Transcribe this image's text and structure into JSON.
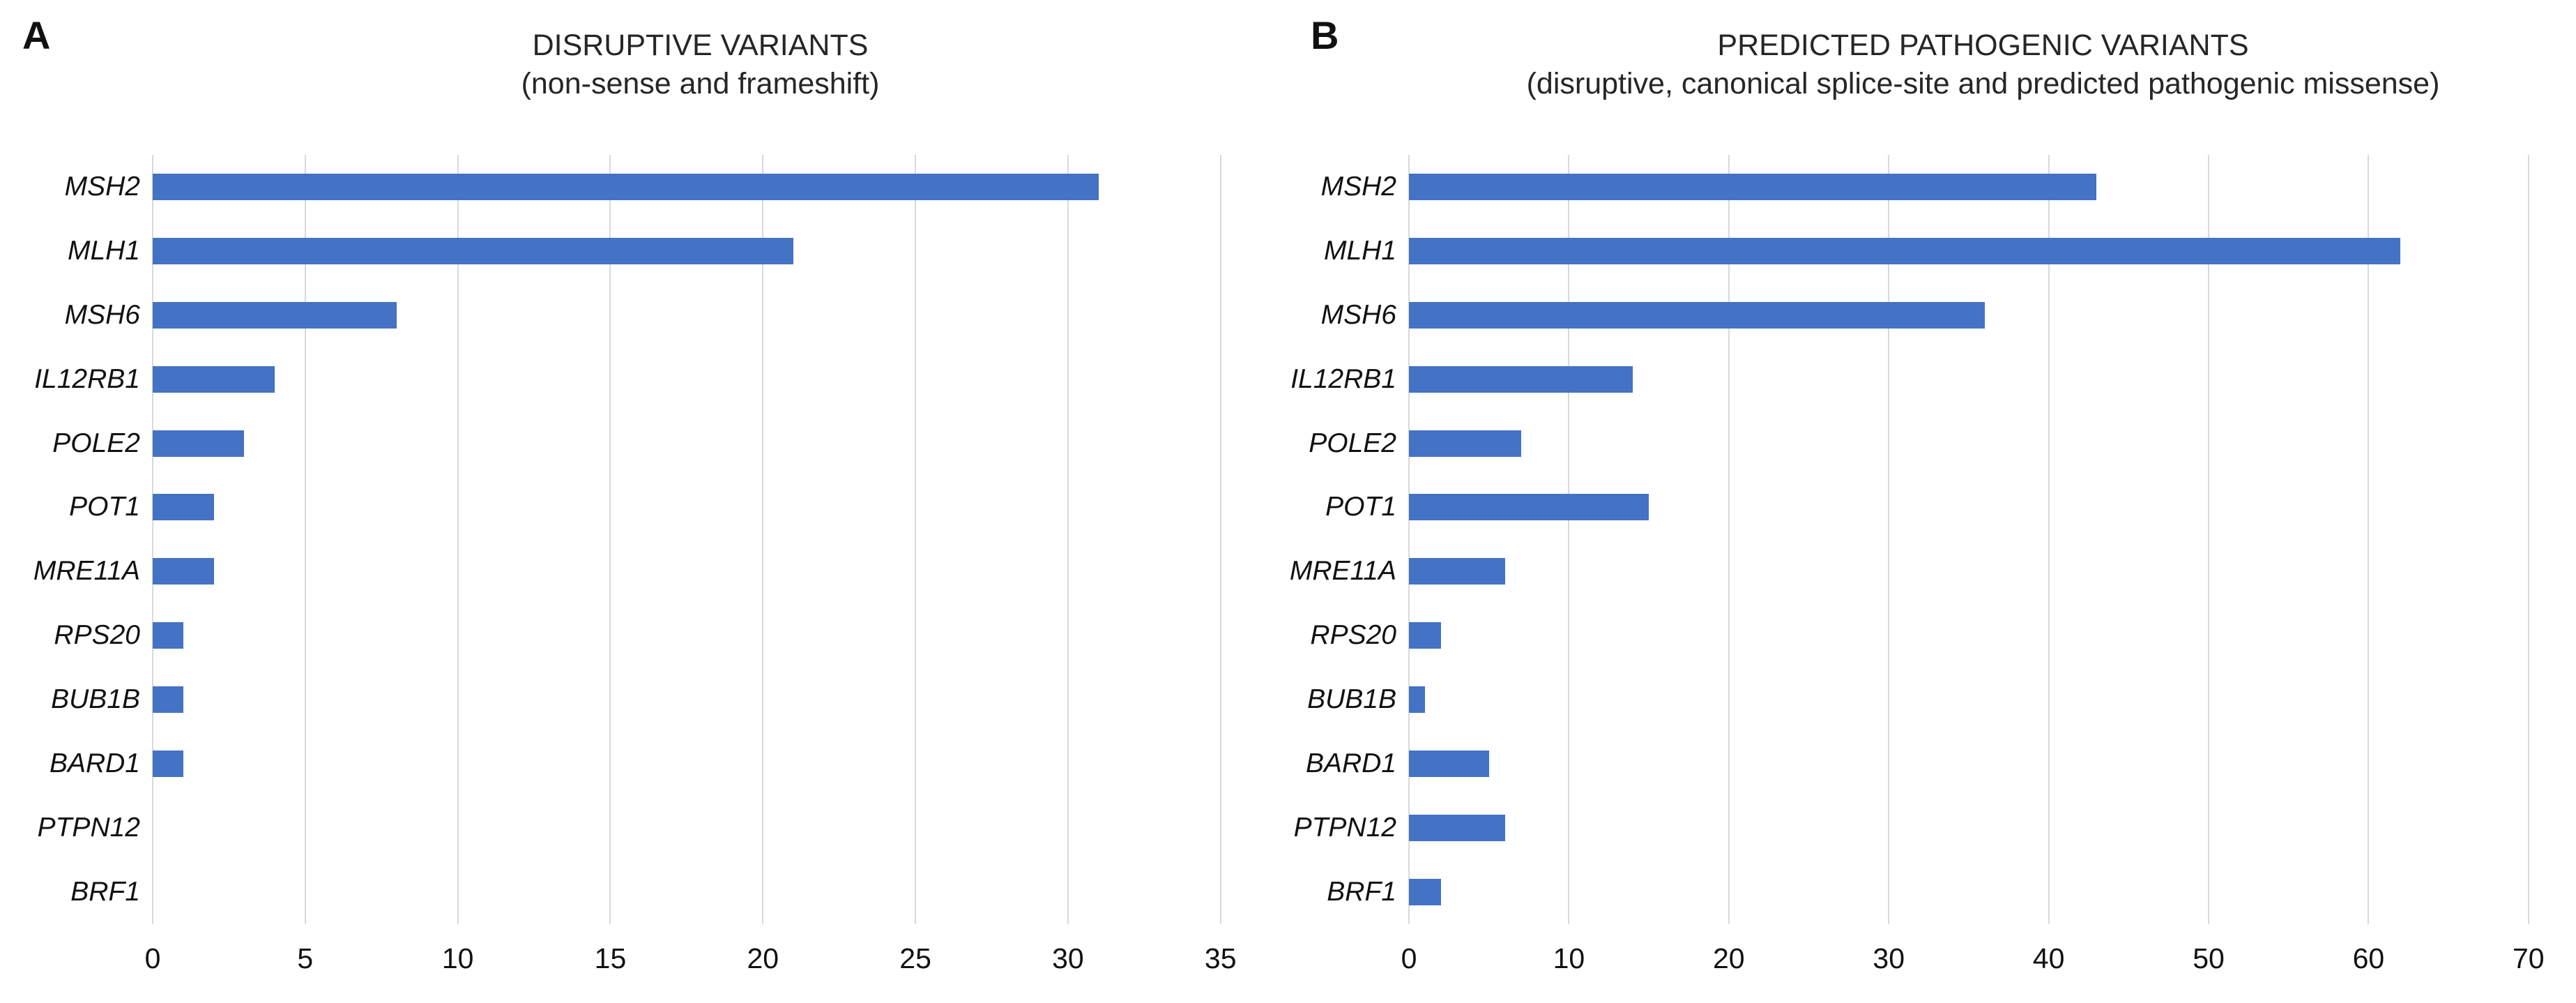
{
  "panels": [
    {
      "letter": "A"
    },
    {
      "letter": "B"
    }
  ],
  "chart_data": [
    {
      "type": "bar",
      "orientation": "horizontal",
      "title": "DISRUPTIVE VARIANTS",
      "subtitle": "(non-sense and frameshift)",
      "categories": [
        "MSH2",
        "MLH1",
        "MSH6",
        "IL12RB1",
        "POLE2",
        "POT1",
        "MRE11A",
        "RPS20",
        "BUB1B",
        "BARD1",
        "PTPN12",
        "BRF1"
      ],
      "values": [
        31,
        21,
        8,
        4,
        3,
        2,
        2,
        1,
        1,
        1,
        0,
        0
      ],
      "xlabel": "",
      "ylabel": "",
      "xlim": [
        0,
        35
      ],
      "x_ticks": [
        0,
        5,
        10,
        15,
        20,
        25,
        30,
        35
      ],
      "grid": "vertical",
      "legend": "none",
      "bar_color": "#4472C4",
      "gridline_color": "#d9d9d9"
    },
    {
      "type": "bar",
      "orientation": "horizontal",
      "title": "PREDICTED PATHOGENIC VARIANTS",
      "subtitle": "(disruptive, canonical splice-site and predicted pathogenic missense)",
      "categories": [
        "MSH2",
        "MLH1",
        "MSH6",
        "IL12RB1",
        "POLE2",
        "POT1",
        "MRE11A",
        "RPS20",
        "BUB1B",
        "BARD1",
        "PTPN12",
        "BRF1"
      ],
      "values": [
        43,
        62,
        36,
        14,
        7,
        15,
        6,
        2,
        1,
        5,
        6,
        2
      ],
      "xlabel": "",
      "ylabel": "",
      "xlim": [
        0,
        70
      ],
      "x_ticks": [
        0,
        10,
        20,
        30,
        40,
        50,
        60,
        70
      ],
      "grid": "vertical",
      "legend": "none",
      "bar_color": "#4472C4",
      "gridline_color": "#d9d9d9"
    }
  ]
}
